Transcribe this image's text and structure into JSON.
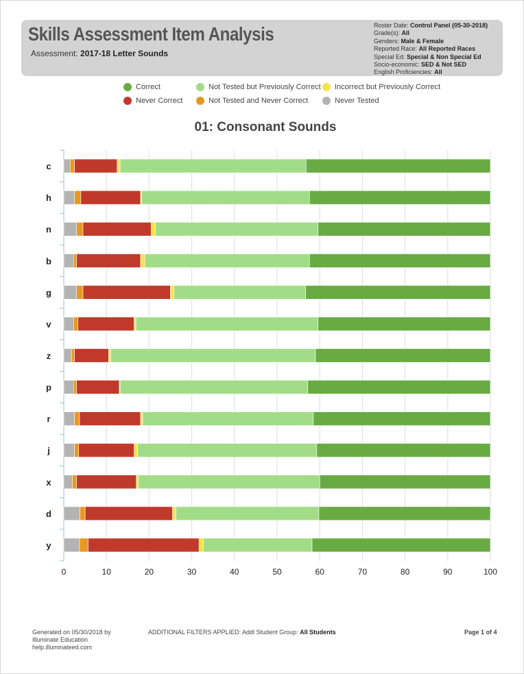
{
  "header": {
    "title": "Skills Assessment Item Analysis",
    "assessment_label": "Assessment:",
    "assessment_value": "2017-18 Letter Sounds",
    "meta": [
      {
        "label": "Roster Date:",
        "value": "Control Panel (05-30-2018)"
      },
      {
        "label": "Grade(s):",
        "value": "All"
      },
      {
        "label": "Genders:",
        "value": "Male & Female"
      },
      {
        "label": "Reported Race:",
        "value": "All Reported Races"
      },
      {
        "label": "Special Ed:",
        "value": "Special & Non Special Ed"
      },
      {
        "label": "Socio-economic:",
        "value": "SED & Not SED"
      },
      {
        "label": "English Proficiencies:",
        "value": "All"
      }
    ]
  },
  "colors": {
    "never_tested": "#b3b3b3",
    "not_tested_never_correct": "#e8981f",
    "never_correct": "#c0392b",
    "incorrect_prev_correct": "#f7e34a",
    "not_tested_prev_correct": "#a3dc87",
    "correct": "#68ab43"
  },
  "legend": [
    {
      "label": "Correct",
      "color": "#68ab43"
    },
    {
      "label": "Not Tested but Previously Correct",
      "color": "#a3dc87"
    },
    {
      "label": "Incorrect but Previously Correct",
      "color": "#f7e34a"
    },
    {
      "label": "Never Correct",
      "color": "#c0392b"
    },
    {
      "label": "Not Tested and Never Correct",
      "color": "#e8981f"
    },
    {
      "label": "Never Tested",
      "color": "#b3b3b3"
    }
  ],
  "chart_data": {
    "type": "bar",
    "orientation": "horizontal",
    "stacked": true,
    "title": "01: Consonant Sounds",
    "categories": [
      "c",
      "h",
      "n",
      "b",
      "g",
      "v",
      "z",
      "p",
      "r",
      "j",
      "x",
      "d",
      "y"
    ],
    "series": [
      {
        "name": "Never Tested",
        "color": "#b3b3b3",
        "values": [
          1.5,
          2.5,
          3.0,
          2.3,
          3.0,
          2.3,
          1.8,
          2.3,
          2.5,
          2.5,
          2.0,
          3.8,
          3.7
        ]
      },
      {
        "name": "Not Tested and Never Correct",
        "color": "#e8981f",
        "values": [
          1.0,
          1.5,
          1.5,
          0.7,
          1.5,
          1.0,
          0.7,
          0.7,
          1.2,
          1.0,
          1.0,
          1.2,
          2.0
        ]
      },
      {
        "name": "Never Correct",
        "color": "#c0392b",
        "values": [
          10.0,
          14.0,
          16.0,
          15.0,
          20.5,
          13.2,
          8.0,
          10.0,
          14.3,
          13.0,
          14.0,
          20.5,
          26.0
        ]
      },
      {
        "name": "Incorrect but Previously Correct",
        "color": "#f7e34a",
        "values": [
          0.7,
          0.3,
          1.0,
          1.0,
          0.8,
          0.4,
          0.5,
          0.2,
          0.5,
          0.8,
          0.5,
          0.8,
          1.0
        ]
      },
      {
        "name": "Not Tested but Previously Correct",
        "color": "#a3dc87",
        "values": [
          43.6,
          39.3,
          38.1,
          38.6,
          30.9,
          42.7,
          48.0,
          44.0,
          40.0,
          42.0,
          42.5,
          33.5,
          25.5
        ]
      },
      {
        "name": "Correct",
        "color": "#68ab43",
        "values": [
          43.2,
          42.4,
          40.4,
          42.4,
          43.3,
          40.4,
          41.0,
          42.8,
          41.5,
          40.7,
          40.0,
          40.2,
          41.8
        ]
      }
    ],
    "xlim": [
      0,
      100
    ],
    "xticks": [
      0,
      10,
      20,
      30,
      40,
      50,
      60,
      70,
      80,
      90,
      100
    ],
    "grid": true
  },
  "footer": {
    "generated_line1": "Generated on 05/30/2018 by",
    "generated_line2": "Illuminate Education",
    "generated_line3": "help.illuminateed.com",
    "filters_label": "ADDITIONAL FILTERS APPLIED:  Addl Student Group:",
    "filters_value": "All Students",
    "page": "Page 1 of 4"
  }
}
